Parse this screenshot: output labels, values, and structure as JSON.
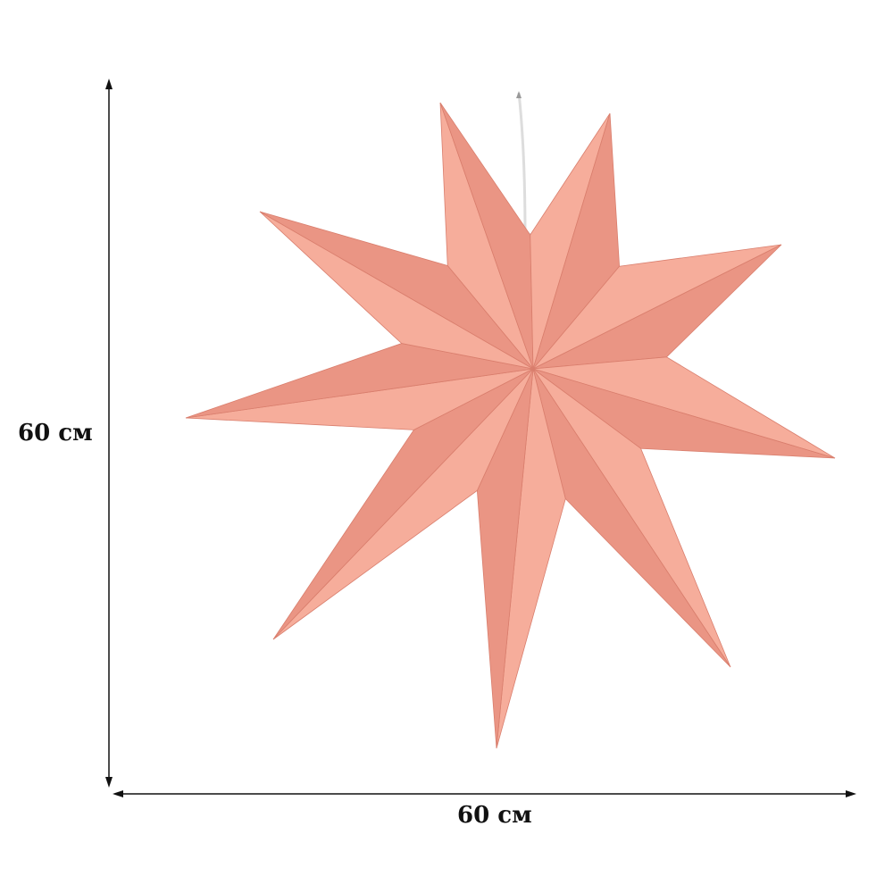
{
  "dimensions": {
    "height_label": "60 см",
    "width_label": "60 см"
  },
  "product": {
    "points": 9,
    "colors": {
      "light": "#f6ad9b",
      "shade": "#ea9584",
      "edge": "#d97e6d"
    }
  }
}
